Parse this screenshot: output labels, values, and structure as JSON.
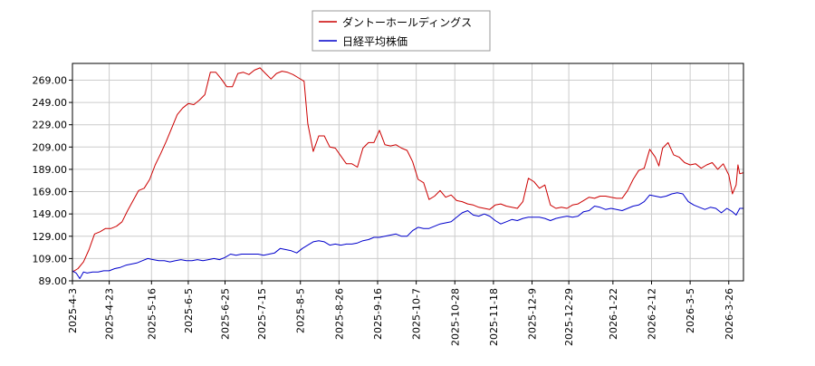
{
  "chart_data": {
    "type": "line",
    "title": "",
    "xlabel": "",
    "ylabel": "",
    "ylim": [
      89,
      284
    ],
    "yticks": [
      89,
      109,
      129,
      149,
      169,
      189,
      209,
      229,
      249,
      269
    ],
    "ytick_labels": [
      "89.00",
      "109.00",
      "129.00",
      "149.00",
      "169.00",
      "189.00",
      "209.00",
      "229.00",
      "249.00",
      "269.00"
    ],
    "x_start": "2025-04-03",
    "x_end": "2026-04-03",
    "xticks": [
      "2025-4-3",
      "2025-4-23",
      "2025-5-16",
      "2025-6-5",
      "2025-6-25",
      "2025-7-15",
      "2025-8-5",
      "2025-8-26",
      "2025-9-16",
      "2025-10-7",
      "2025-10-28",
      "2025-11-18",
      "2025-12-9",
      "2025-12-29",
      "2026-1-22",
      "2026-2-12",
      "2026-3-5",
      "2026-3-26"
    ],
    "grid": true,
    "legend_position": "top-center",
    "series": [
      {
        "name": "ダントーホールディングス",
        "color": "#cc0000",
        "points": [
          [
            "2025-04-03",
            97
          ],
          [
            "2025-04-06",
            100
          ],
          [
            "2025-04-09",
            106
          ],
          [
            "2025-04-12",
            117
          ],
          [
            "2025-04-15",
            131
          ],
          [
            "2025-04-18",
            133
          ],
          [
            "2025-04-21",
            136
          ],
          [
            "2025-04-24",
            136
          ],
          [
            "2025-04-27",
            138
          ],
          [
            "2025-04-30",
            142
          ],
          [
            "2025-05-03",
            152
          ],
          [
            "2025-05-06",
            161
          ],
          [
            "2025-05-09",
            170
          ],
          [
            "2025-05-12",
            172
          ],
          [
            "2025-05-15",
            180
          ],
          [
            "2025-05-18",
            193
          ],
          [
            "2025-05-21",
            203
          ],
          [
            "2025-05-24",
            214
          ],
          [
            "2025-05-27",
            226
          ],
          [
            "2025-05-30",
            238
          ],
          [
            "2025-06-02",
            244
          ],
          [
            "2025-06-05",
            248
          ],
          [
            "2025-06-08",
            247
          ],
          [
            "2025-06-11",
            251
          ],
          [
            "2025-06-14",
            256
          ],
          [
            "2025-06-17",
            276
          ],
          [
            "2025-06-20",
            276
          ],
          [
            "2025-06-23",
            270
          ],
          [
            "2025-06-26",
            263
          ],
          [
            "2025-06-29",
            263
          ],
          [
            "2025-07-02",
            275
          ],
          [
            "2025-07-05",
            276
          ],
          [
            "2025-07-08",
            274
          ],
          [
            "2025-07-11",
            278
          ],
          [
            "2025-07-14",
            280
          ],
          [
            "2025-07-17",
            275
          ],
          [
            "2025-07-20",
            270
          ],
          [
            "2025-07-23",
            275
          ],
          [
            "2025-07-26",
            277
          ],
          [
            "2025-07-29",
            276
          ],
          [
            "2025-08-01",
            274
          ],
          [
            "2025-08-04",
            271
          ],
          [
            "2025-08-07",
            268
          ],
          [
            "2025-08-09",
            230
          ],
          [
            "2025-08-12",
            205
          ],
          [
            "2025-08-15",
            219
          ],
          [
            "2025-08-18",
            219
          ],
          [
            "2025-08-21",
            209
          ],
          [
            "2025-08-24",
            208
          ],
          [
            "2025-08-27",
            201
          ],
          [
            "2025-08-30",
            194
          ],
          [
            "2025-09-02",
            194
          ],
          [
            "2025-09-05",
            191
          ],
          [
            "2025-09-08",
            208
          ],
          [
            "2025-09-11",
            213
          ],
          [
            "2025-09-14",
            213
          ],
          [
            "2025-09-17",
            224
          ],
          [
            "2025-09-20",
            211
          ],
          [
            "2025-09-23",
            210
          ],
          [
            "2025-09-26",
            211
          ],
          [
            "2025-09-29",
            208
          ],
          [
            "2025-10-02",
            206
          ],
          [
            "2025-10-05",
            196
          ],
          [
            "2025-10-08",
            180
          ],
          [
            "2025-10-11",
            177
          ],
          [
            "2025-10-14",
            162
          ],
          [
            "2025-10-17",
            165
          ],
          [
            "2025-10-20",
            170
          ],
          [
            "2025-10-23",
            164
          ],
          [
            "2025-10-26",
            166
          ],
          [
            "2025-10-29",
            161
          ],
          [
            "2025-11-01",
            160
          ],
          [
            "2025-11-04",
            158
          ],
          [
            "2025-11-07",
            157
          ],
          [
            "2025-11-10",
            155
          ],
          [
            "2025-11-13",
            154
          ],
          [
            "2025-11-16",
            153
          ],
          [
            "2025-11-19",
            157
          ],
          [
            "2025-11-22",
            158
          ],
          [
            "2025-11-25",
            156
          ],
          [
            "2025-11-28",
            155
          ],
          [
            "2025-12-01",
            154
          ],
          [
            "2025-12-04",
            160
          ],
          [
            "2025-12-07",
            181
          ],
          [
            "2025-12-10",
            178
          ],
          [
            "2025-12-13",
            172
          ],
          [
            "2025-12-16",
            175
          ],
          [
            "2025-12-19",
            157
          ],
          [
            "2025-12-22",
            154
          ],
          [
            "2025-12-25",
            155
          ],
          [
            "2025-12-28",
            154
          ],
          [
            "2025-12-31",
            157
          ],
          [
            "2026-01-03",
            158
          ],
          [
            "2026-01-06",
            161
          ],
          [
            "2026-01-09",
            164
          ],
          [
            "2026-01-12",
            163
          ],
          [
            "2026-01-15",
            165
          ],
          [
            "2026-01-18",
            165
          ],
          [
            "2026-01-21",
            164
          ],
          [
            "2026-01-24",
            163
          ],
          [
            "2026-01-27",
            163
          ],
          [
            "2026-01-30",
            170
          ],
          [
            "2026-02-02",
            180
          ],
          [
            "2026-02-05",
            188
          ],
          [
            "2026-02-08",
            190
          ],
          [
            "2026-02-11",
            207
          ],
          [
            "2026-02-14",
            200
          ],
          [
            "2026-02-16",
            192
          ],
          [
            "2026-02-18",
            208
          ],
          [
            "2026-02-21",
            213
          ],
          [
            "2026-02-24",
            202
          ],
          [
            "2026-02-27",
            200
          ],
          [
            "2026-03-02",
            195
          ],
          [
            "2026-03-05",
            193
          ],
          [
            "2026-03-08",
            194
          ],
          [
            "2026-03-11",
            190
          ],
          [
            "2026-03-14",
            193
          ],
          [
            "2026-03-17",
            195
          ],
          [
            "2026-03-20",
            189
          ],
          [
            "2026-03-23",
            194
          ],
          [
            "2026-03-26",
            184
          ],
          [
            "2026-03-28",
            167
          ],
          [
            "2026-03-30",
            175
          ],
          [
            "2026-03-31",
            193
          ],
          [
            "2026-04-01",
            185
          ],
          [
            "2026-04-03",
            186
          ]
        ]
      },
      {
        "name": "日経平均株価",
        "color": "#0000cc",
        "points": [
          [
            "2025-04-03",
            98
          ],
          [
            "2025-04-05",
            96
          ],
          [
            "2025-04-07",
            91
          ],
          [
            "2025-04-09",
            97
          ],
          [
            "2025-04-11",
            96
          ],
          [
            "2025-04-14",
            97
          ],
          [
            "2025-04-17",
            97
          ],
          [
            "2025-04-20",
            98
          ],
          [
            "2025-04-23",
            98
          ],
          [
            "2025-04-26",
            100
          ],
          [
            "2025-04-29",
            101
          ],
          [
            "2025-05-02",
            103
          ],
          [
            "2025-05-05",
            104
          ],
          [
            "2025-05-08",
            105
          ],
          [
            "2025-05-11",
            107
          ],
          [
            "2025-05-14",
            109
          ],
          [
            "2025-05-17",
            108
          ],
          [
            "2025-05-20",
            107
          ],
          [
            "2025-05-23",
            107
          ],
          [
            "2025-05-26",
            106
          ],
          [
            "2025-05-29",
            107
          ],
          [
            "2025-06-01",
            108
          ],
          [
            "2025-06-04",
            107
          ],
          [
            "2025-06-07",
            107
          ],
          [
            "2025-06-10",
            108
          ],
          [
            "2025-06-13",
            107
          ],
          [
            "2025-06-16",
            108
          ],
          [
            "2025-06-19",
            109
          ],
          [
            "2025-06-22",
            108
          ],
          [
            "2025-06-25",
            110
          ],
          [
            "2025-06-28",
            113
          ],
          [
            "2025-07-01",
            112
          ],
          [
            "2025-07-04",
            113
          ],
          [
            "2025-07-07",
            113
          ],
          [
            "2025-07-10",
            113
          ],
          [
            "2025-07-13",
            113
          ],
          [
            "2025-07-16",
            112
          ],
          [
            "2025-07-19",
            113
          ],
          [
            "2025-07-22",
            114
          ],
          [
            "2025-07-25",
            118
          ],
          [
            "2025-07-28",
            117
          ],
          [
            "2025-07-31",
            116
          ],
          [
            "2025-08-03",
            114
          ],
          [
            "2025-08-06",
            118
          ],
          [
            "2025-08-09",
            121
          ],
          [
            "2025-08-12",
            124
          ],
          [
            "2025-08-15",
            125
          ],
          [
            "2025-08-18",
            124
          ],
          [
            "2025-08-21",
            121
          ],
          [
            "2025-08-24",
            122
          ],
          [
            "2025-08-27",
            121
          ],
          [
            "2025-08-30",
            122
          ],
          [
            "2025-09-02",
            122
          ],
          [
            "2025-09-05",
            123
          ],
          [
            "2025-09-08",
            125
          ],
          [
            "2025-09-11",
            126
          ],
          [
            "2025-09-14",
            128
          ],
          [
            "2025-09-17",
            128
          ],
          [
            "2025-09-20",
            129
          ],
          [
            "2025-09-23",
            130
          ],
          [
            "2025-09-26",
            131
          ],
          [
            "2025-09-29",
            129
          ],
          [
            "2025-10-02",
            129
          ],
          [
            "2025-10-05",
            134
          ],
          [
            "2025-10-08",
            137
          ],
          [
            "2025-10-11",
            136
          ],
          [
            "2025-10-14",
            136
          ],
          [
            "2025-10-17",
            138
          ],
          [
            "2025-10-20",
            140
          ],
          [
            "2025-10-23",
            141
          ],
          [
            "2025-10-26",
            142
          ],
          [
            "2025-10-29",
            146
          ],
          [
            "2025-11-01",
            150
          ],
          [
            "2025-11-04",
            152
          ],
          [
            "2025-11-07",
            148
          ],
          [
            "2025-11-10",
            147
          ],
          [
            "2025-11-13",
            149
          ],
          [
            "2025-11-16",
            147
          ],
          [
            "2025-11-19",
            143
          ],
          [
            "2025-11-22",
            140
          ],
          [
            "2025-11-25",
            142
          ],
          [
            "2025-11-28",
            144
          ],
          [
            "2025-12-01",
            143
          ],
          [
            "2025-12-04",
            145
          ],
          [
            "2025-12-07",
            146
          ],
          [
            "2025-12-10",
            146
          ],
          [
            "2025-12-13",
            146
          ],
          [
            "2025-12-16",
            145
          ],
          [
            "2025-12-19",
            143
          ],
          [
            "2025-12-22",
            145
          ],
          [
            "2025-12-25",
            146
          ],
          [
            "2025-12-28",
            147
          ],
          [
            "2025-12-31",
            146
          ],
          [
            "2026-01-03",
            147
          ],
          [
            "2026-01-06",
            151
          ],
          [
            "2026-01-09",
            152
          ],
          [
            "2026-01-12",
            156
          ],
          [
            "2026-01-15",
            155
          ],
          [
            "2026-01-18",
            153
          ],
          [
            "2026-01-21",
            154
          ],
          [
            "2026-01-24",
            153
          ],
          [
            "2026-01-27",
            152
          ],
          [
            "2026-01-30",
            154
          ],
          [
            "2026-02-02",
            156
          ],
          [
            "2026-02-05",
            157
          ],
          [
            "2026-02-08",
            160
          ],
          [
            "2026-02-11",
            166
          ],
          [
            "2026-02-14",
            165
          ],
          [
            "2026-02-17",
            164
          ],
          [
            "2026-02-20",
            165
          ],
          [
            "2026-02-23",
            167
          ],
          [
            "2026-02-26",
            168
          ],
          [
            "2026-03-01",
            167
          ],
          [
            "2026-03-04",
            160
          ],
          [
            "2026-03-07",
            157
          ],
          [
            "2026-03-10",
            155
          ],
          [
            "2026-03-13",
            153
          ],
          [
            "2026-03-16",
            155
          ],
          [
            "2026-03-19",
            154
          ],
          [
            "2026-03-22",
            150
          ],
          [
            "2026-03-25",
            154
          ],
          [
            "2026-03-28",
            151
          ],
          [
            "2026-03-30",
            148
          ],
          [
            "2026-04-01",
            154
          ],
          [
            "2026-04-03",
            154
          ]
        ]
      }
    ]
  }
}
